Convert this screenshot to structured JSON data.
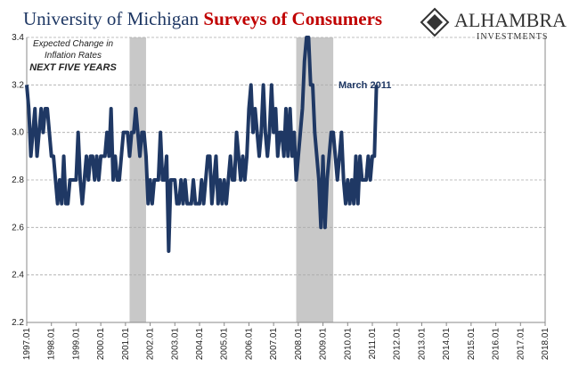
{
  "chart_data": {
    "type": "line",
    "title": "University of Michigan",
    "title_highlight": "Surveys of Consumers",
    "brand": "ALHAMBRA",
    "brand_sub": "INVESTMENTS",
    "annotations": [
      "Expected Change in",
      "Inflation Rates",
      "NEXT FIVE YEARS",
      "March 2011"
    ],
    "ylim": [
      2.2,
      3.4
    ],
    "yticks": [
      2.2,
      2.4,
      2.6,
      2.8,
      {
        "value": 3,
        "label": "3.0"
      },
      3.2,
      3.4
    ],
    "xlim": [
      "1997.01",
      "2018.01"
    ],
    "xticks": [
      "1997.01",
      "1998.01",
      "1999.01",
      "2000.01",
      "2001.01",
      "2002.01",
      "2003.01",
      "2004.01",
      "2005.01",
      "2006.01",
      "2007.01",
      "2008.01",
      "2009.01",
      "2010.01",
      "2011.01",
      "2012.01",
      "2013.01",
      "2014.01",
      "2015.01",
      "2016.01",
      "2017.01",
      "2018.01"
    ],
    "grid": true,
    "shaded_periods": [
      {
        "start": "2001.03",
        "end": "2001.11"
      },
      {
        "start": "2007.12",
        "end": "2009.06"
      }
    ],
    "x": [
      "1997.01",
      "1997.02",
      "1997.03",
      "1997.04",
      "1997.05",
      "1997.06",
      "1997.07",
      "1997.08",
      "1997.09",
      "1997.10",
      "1997.11",
      "1997.12",
      "1998.01",
      "1998.02",
      "1998.03",
      "1998.04",
      "1998.05",
      "1998.06",
      "1998.07",
      "1998.08",
      "1998.09",
      "1998.10",
      "1998.11",
      "1998.12",
      "1999.01",
      "1999.02",
      "1999.03",
      "1999.04",
      "1999.05",
      "1999.06",
      "1999.07",
      "1999.08",
      "1999.09",
      "1999.10",
      "1999.11",
      "1999.12",
      "2000.01",
      "2000.02",
      "2000.03",
      "2000.04",
      "2000.05",
      "2000.06",
      "2000.07",
      "2000.08",
      "2000.09",
      "2000.10",
      "2000.11",
      "2000.12",
      "2001.01",
      "2001.02",
      "2001.03",
      "2001.04",
      "2001.05",
      "2001.06",
      "2001.07",
      "2001.08",
      "2001.09",
      "2001.10",
      "2001.11",
      "2001.12",
      "2002.01",
      "2002.02",
      "2002.03",
      "2002.04",
      "2002.05",
      "2002.06",
      "2002.07",
      "2002.08",
      "2002.09",
      "2002.10",
      "2002.11",
      "2002.12",
      "2003.01",
      "2003.02",
      "2003.03",
      "2003.04",
      "2003.05",
      "2003.06",
      "2003.07",
      "2003.08",
      "2003.09",
      "2003.10",
      "2003.11",
      "2003.12",
      "2004.01",
      "2004.02",
      "2004.03",
      "2004.04",
      "2004.05",
      "2004.06",
      "2004.07",
      "2004.08",
      "2004.09",
      "2004.10",
      "2004.11",
      "2004.12",
      "2005.01",
      "2005.02",
      "2005.03",
      "2005.04",
      "2005.05",
      "2005.06",
      "2005.07",
      "2005.08",
      "2005.09",
      "2005.10",
      "2005.11",
      "2005.12",
      "2006.01",
      "2006.02",
      "2006.03",
      "2006.04",
      "2006.05",
      "2006.06",
      "2006.07",
      "2006.08",
      "2006.09",
      "2006.10",
      "2006.11",
      "2006.12",
      "2007.01",
      "2007.02",
      "2007.03",
      "2007.04",
      "2007.05",
      "2007.06",
      "2007.07",
      "2007.08",
      "2007.09",
      "2007.10",
      "2007.11",
      "2007.12",
      "2008.01",
      "2008.02",
      "2008.03",
      "2008.04",
      "2008.05",
      "2008.06",
      "2008.07",
      "2008.08",
      "2008.09",
      "2008.10",
      "2008.11",
      "2008.12",
      "2009.01",
      "2009.02",
      "2009.03",
      "2009.04",
      "2009.05",
      "2009.06",
      "2009.07",
      "2009.08",
      "2009.09",
      "2009.10",
      "2009.11",
      "2009.12",
      "2010.01",
      "2010.02",
      "2010.03",
      "2010.04",
      "2010.05",
      "2010.06",
      "2010.07",
      "2010.08",
      "2010.09",
      "2010.10",
      "2010.11",
      "2010.12",
      "2011.01",
      "2011.02",
      "2011.03"
    ],
    "series": [
      {
        "color": "#1f3864",
        "values": [
          3.2,
          3.1,
          2.9,
          3.0,
          3.1,
          2.9,
          3.0,
          3.1,
          3.0,
          3.1,
          3.1,
          3.0,
          2.9,
          2.9,
          2.8,
          2.7,
          2.8,
          2.7,
          2.9,
          2.7,
          2.7,
          2.8,
          2.8,
          2.8,
          2.8,
          3.0,
          2.8,
          2.7,
          2.8,
          2.9,
          2.8,
          2.9,
          2.9,
          2.8,
          2.9,
          2.8,
          2.9,
          2.9,
          2.9,
          3.0,
          2.9,
          3.1,
          2.8,
          2.9,
          2.8,
          2.8,
          2.9,
          3.0,
          3.0,
          3.0,
          2.9,
          3.0,
          3.0,
          3.1,
          3.0,
          2.9,
          3.0,
          3.0,
          2.9,
          2.7,
          2.8,
          2.7,
          2.8,
          2.8,
          2.8,
          3.0,
          2.8,
          2.8,
          2.9,
          2.5,
          2.8,
          2.8,
          2.8,
          2.7,
          2.7,
          2.8,
          2.7,
          2.8,
          2.7,
          2.7,
          2.7,
          2.8,
          2.7,
          2.7,
          2.7,
          2.8,
          2.7,
          2.8,
          2.9,
          2.9,
          2.7,
          2.8,
          2.9,
          2.7,
          2.8,
          2.7,
          2.8,
          2.7,
          2.8,
          2.9,
          2.8,
          2.8,
          3.0,
          2.9,
          2.8,
          2.9,
          2.8,
          2.9,
          3.1,
          3.2,
          3.0,
          3.1,
          3.0,
          2.9,
          3.0,
          3.2,
          3.0,
          2.9,
          3.0,
          3.2,
          3.0,
          3.1,
          2.9,
          3.0,
          3.0,
          2.9,
          3.1,
          2.9,
          3.1,
          2.9,
          3.0,
          2.8,
          2.9,
          3.0,
          3.1,
          3.3,
          3.4,
          3.4,
          3.2,
          3.2,
          3.0,
          2.9,
          2.8,
          2.6,
          2.9,
          2.6,
          2.8,
          2.9,
          3.0,
          3.0,
          2.9,
          2.8,
          2.9,
          3.0,
          2.8,
          2.7,
          2.8,
          2.7,
          2.8,
          2.7,
          2.9,
          2.7,
          2.9,
          2.8,
          2.8,
          2.8,
          2.9,
          2.8,
          2.9,
          2.9,
          3.2
        ]
      }
    ]
  }
}
